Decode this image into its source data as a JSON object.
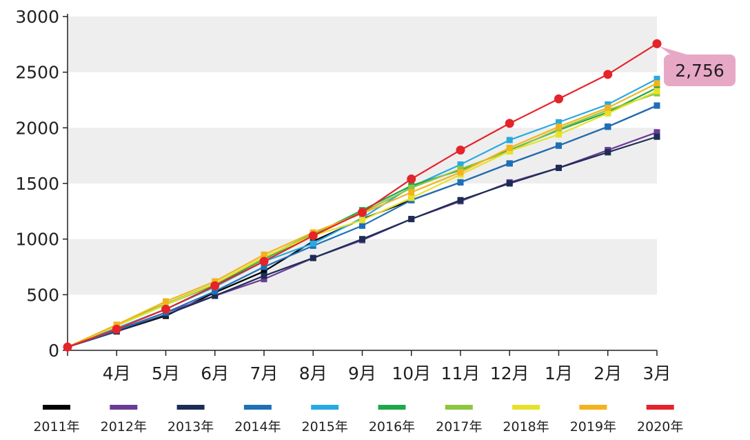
{
  "chart_data": {
    "type": "line",
    "categories": [
      "",
      "4月",
      "5月",
      "6月",
      "7月",
      "8月",
      "9月",
      "10月",
      "11月",
      "12月",
      "1月",
      "2月",
      "3月"
    ],
    "ylim": [
      0,
      3000
    ],
    "yticks": [
      "0",
      "500",
      "1000",
      "1500",
      "2000",
      "2500",
      "3000"
    ],
    "grid": "alternating horizontal bands",
    "legend_position": "bottom",
    "series": [
      {
        "name": "2011年",
        "color": "#000000",
        "marker": "square",
        "values": [
          30,
          170,
          310,
          520,
          710,
          980,
          1180,
          1350,
          1510,
          1680,
          1840,
          2010,
          2200
        ]
      },
      {
        "name": "2012年",
        "color": "#6a3b96",
        "marker": "square",
        "values": [
          30,
          180,
          340,
          490,
          640,
          830,
          990,
          1180,
          1340,
          1510,
          1640,
          1800,
          1960
        ]
      },
      {
        "name": "2013年",
        "color": "#1c2d55",
        "marker": "square",
        "values": [
          30,
          170,
          320,
          490,
          670,
          830,
          1000,
          1180,
          1350,
          1500,
          1640,
          1780,
          1920
        ]
      },
      {
        "name": "2014年",
        "color": "#1e6fb8",
        "marker": "square",
        "values": [
          30,
          180,
          340,
          530,
          750,
          940,
          1120,
          1350,
          1510,
          1680,
          1840,
          2010,
          2200
        ]
      },
      {
        "name": "2015年",
        "color": "#27aae1",
        "marker": "square",
        "values": [
          30,
          200,
          370,
          570,
          800,
          960,
          1190,
          1470,
          1670,
          1890,
          2050,
          2210,
          2440
        ]
      },
      {
        "name": "2016年",
        "color": "#1fa84a",
        "marker": "square",
        "values": [
          30,
          220,
          410,
          590,
          820,
          1040,
          1260,
          1480,
          1620,
          1800,
          1980,
          2140,
          2360
        ]
      },
      {
        "name": "2017年",
        "color": "#8dc63f",
        "marker": "square",
        "values": [
          30,
          230,
          420,
          600,
          830,
          1050,
          1240,
          1460,
          1630,
          1790,
          1990,
          2160,
          2310
        ]
      },
      {
        "name": "2018年",
        "color": "#e6e229",
        "marker": "square",
        "values": [
          30,
          220,
          410,
          600,
          840,
          1030,
          1170,
          1370,
          1580,
          1790,
          1940,
          2130,
          2330
        ]
      },
      {
        "name": "2019年",
        "color": "#f4b31c",
        "marker": "square",
        "values": [
          30,
          230,
          440,
          620,
          860,
          1060,
          1230,
          1420,
          1600,
          1820,
          2010,
          2180,
          2400
        ]
      },
      {
        "name": "2020年",
        "color": "#e5232a",
        "marker": "circle",
        "values": [
          30,
          190,
          370,
          580,
          800,
          1030,
          1240,
          1540,
          1800,
          2040,
          2260,
          2480,
          2756
        ]
      }
    ],
    "annotation": {
      "text": "2,756",
      "series": "2020年",
      "index": 12,
      "color": "#e7a8c6"
    }
  }
}
